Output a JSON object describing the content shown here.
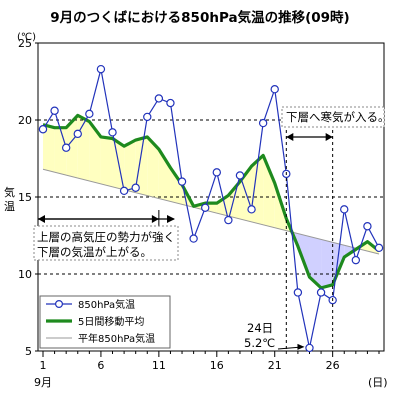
{
  "chart_data": {
    "type": "line",
    "title": "9月のつくばにおける850hPa気温の推移(09時)",
    "y_unit": "(℃)",
    "ylabel": "気温",
    "x_unit": "(日)",
    "month_label": "9月",
    "xlim": [
      1,
      30
    ],
    "ylim": [
      5,
      25
    ],
    "x_ticks": [
      1,
      6,
      11,
      16,
      21,
      26
    ],
    "y_ticks": [
      5,
      10,
      15,
      20,
      25
    ],
    "grid": "horizontal-dashed",
    "legend_position": "bottom-left",
    "series": [
      {
        "name": "850hPa気温",
        "color": "#2233bb",
        "marker": "circle",
        "x": [
          1,
          2,
          3,
          4,
          5,
          6,
          7,
          8,
          9,
          10,
          11,
          12,
          13,
          14,
          15,
          16,
          17,
          18,
          19,
          20,
          21,
          22,
          23,
          24,
          25,
          26,
          27,
          28,
          29,
          30
        ],
        "values": [
          19.4,
          20.6,
          18.2,
          19.1,
          20.4,
          23.3,
          19.2,
          15.4,
          15.6,
          20.2,
          21.4,
          21.1,
          16.0,
          12.3,
          14.3,
          16.6,
          13.5,
          16.4,
          14.2,
          19.8,
          22.0,
          16.5,
          8.8,
          5.2,
          8.8,
          8.3,
          14.2,
          10.9,
          13.1,
          11.7
        ]
      },
      {
        "name": "5日間移動平均",
        "color": "#1e8a1e",
        "x": [
          1,
          2,
          3,
          4,
          5,
          6,
          7,
          8,
          9,
          10,
          11,
          12,
          13,
          14,
          15,
          16,
          17,
          18,
          19,
          20,
          21,
          22,
          23,
          24,
          25,
          26,
          27,
          28,
          29,
          30
        ],
        "values": [
          19.7,
          19.5,
          19.5,
          20.3,
          19.9,
          18.9,
          18.8,
          18.3,
          18.7,
          18.9,
          18.1,
          16.9,
          15.8,
          14.4,
          14.6,
          14.6,
          15.1,
          16.0,
          17.0,
          17.7,
          15.9,
          13.6,
          11.8,
          9.8,
          9.1,
          9.3,
          11.1,
          11.6,
          12.1,
          11.5
        ]
      },
      {
        "name": "平年850hPa気温",
        "color": "#999999",
        "x": [
          1,
          30
        ],
        "values": [
          16.8,
          11.3
        ]
      }
    ],
    "fills": [
      {
        "description": "above normal",
        "color": "#ffffc0"
      },
      {
        "description": "below normal",
        "color": "#d0d0ff"
      }
    ],
    "annotations": [
      {
        "text_lines": [
          "上層の高気圧の勢力が強く",
          "下層の気温が上がる。"
        ],
        "x_range": [
          1,
          11
        ]
      },
      {
        "text_lines": [
          "下層へ寒気が入る。"
        ],
        "x_range": [
          22,
          26
        ]
      },
      {
        "text_lines": [
          "24日",
          "5.2℃"
        ],
        "points_to": {
          "x": 24,
          "y": 5.2
        }
      }
    ]
  }
}
